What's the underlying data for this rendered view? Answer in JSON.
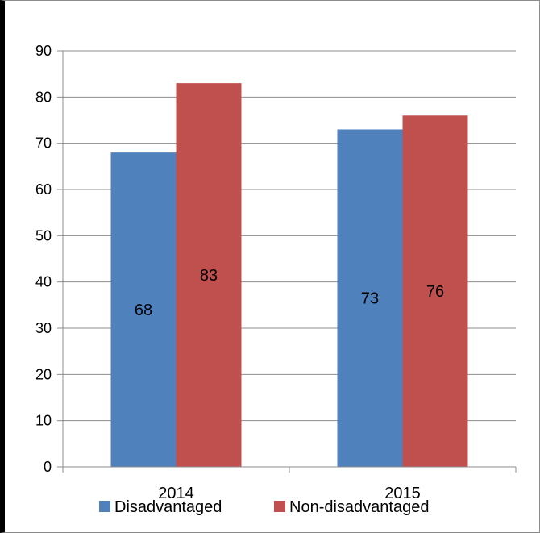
{
  "chart_data": {
    "type": "bar",
    "title": "",
    "xlabel": "",
    "ylabel": "",
    "categories": [
      "2014",
      "2015"
    ],
    "series": [
      {
        "name": "Disadvantaged",
        "color": "#4F81BD",
        "values": [
          68,
          73
        ]
      },
      {
        "name": "Non-disadvantaged",
        "color": "#C0504D",
        "values": [
          83,
          76
        ]
      }
    ],
    "ylim": [
      0,
      90
    ],
    "yticks": [
      0,
      10,
      20,
      30,
      40,
      50,
      60,
      70,
      80,
      90
    ],
    "grid": true,
    "legend_position": "bottom",
    "data_labels": true
  }
}
